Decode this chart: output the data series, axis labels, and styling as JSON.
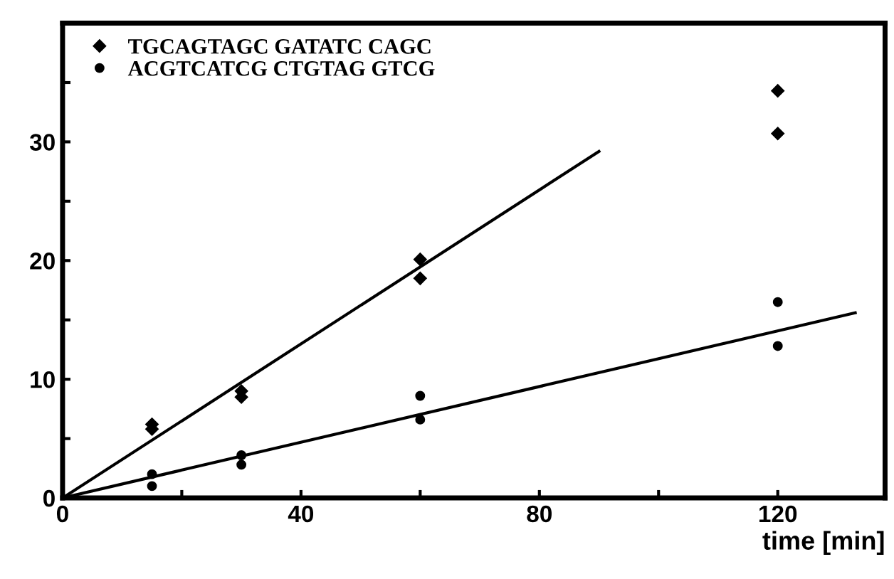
{
  "chart_data": {
    "type": "scatter",
    "xlabel": "time [min]",
    "xlim": [
      0,
      138
    ],
    "ylim": [
      0,
      40
    ],
    "xticks": [
      0,
      {
        "value": 20,
        "label": null
      },
      40,
      {
        "value": 60,
        "label": null
      },
      80,
      {
        "value": 100,
        "label": null
      },
      120
    ],
    "yticks": [
      0,
      {
        "value": 5,
        "label": null
      },
      10,
      {
        "value": 15,
        "label": null
      },
      20,
      {
        "value": 25,
        "label": null
      },
      30,
      {
        "value": 35,
        "label": null
      }
    ],
    "grid": false,
    "legend": "top left",
    "series": [
      {
        "name": "TGCAGTAGC GATATC CAGC",
        "color": "#000000",
        "marker": "diamond",
        "x": [
          15,
          15,
          30,
          30,
          60,
          60,
          120,
          120
        ],
        "values": [
          6.2,
          5.8,
          9,
          8.5,
          20.1,
          18.5,
          34.3,
          30.7
        ]
      },
      {
        "name": "ACGTCATCG CTGTAG GTCG",
        "color": "#000000",
        "marker": "circle",
        "x": [
          15,
          15,
          30,
          30,
          60,
          60,
          120,
          120
        ],
        "values": [
          2,
          1,
          3.6,
          2.8,
          8.6,
          6.6,
          16.5,
          12.8
        ]
      },
      {
        "type": "line",
        "color": "#000000",
        "marker": "none",
        "x": [
          0,
          90
        ],
        "values": [
          0,
          29.2
        ]
      },
      {
        "type": "line",
        "color": "#000000",
        "marker": "none",
        "x": [
          0,
          133
        ],
        "values": [
          0,
          15.6
        ]
      }
    ]
  }
}
